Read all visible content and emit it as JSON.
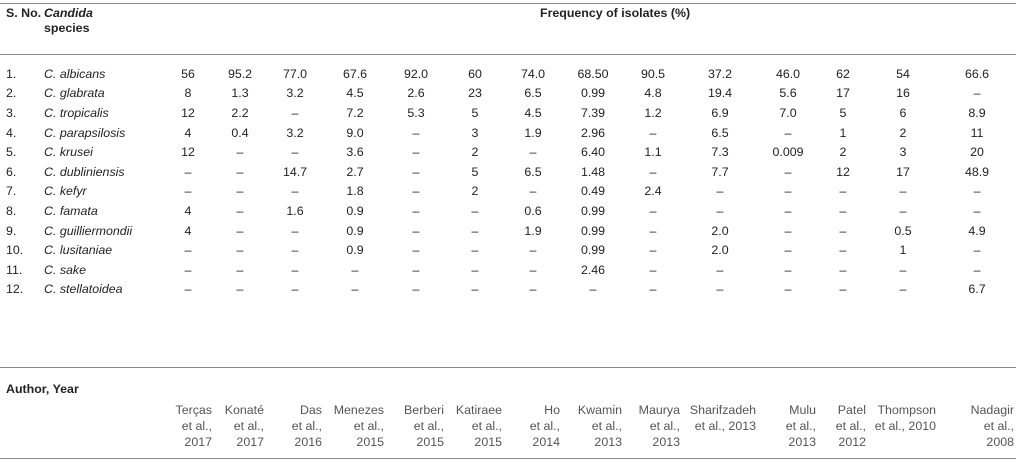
{
  "header": {
    "col1": "S. No.",
    "col2_line1": "Candida",
    "col2_line2": "species",
    "freq": "Frequency of isolates (%)"
  },
  "rows": [
    {
      "no": "1.",
      "species": "C. albicans",
      "values": [
        "56",
        "95.2",
        "77.0",
        "67.6",
        "92.0",
        "60",
        "74.0",
        "68.50",
        "90.5",
        "37.2",
        "46.0",
        "62",
        "54",
        "66.6"
      ]
    },
    {
      "no": "2.",
      "species": "C. glabrata",
      "values": [
        "8",
        "1.3",
        "3.2",
        "4.5",
        "2.6",
        "23",
        "6.5",
        "0.99",
        "4.8",
        "19.4",
        "5.6",
        "17",
        "16",
        "–"
      ]
    },
    {
      "no": "3.",
      "species": "C. tropicalis",
      "values": [
        "12",
        "2.2",
        "–",
        "7.2",
        "5.3",
        "5",
        "4.5",
        "7.39",
        "1.2",
        "6.9",
        "7.0",
        "5",
        "6",
        "8.9"
      ]
    },
    {
      "no": "4.",
      "species": "C. parapsilosis",
      "values": [
        "4",
        "0.4",
        "3.2",
        "9.0",
        "–",
        "3",
        "1.9",
        "2.96",
        "–",
        "6.5",
        "–",
        "1",
        "2",
        "11"
      ]
    },
    {
      "no": "5.",
      "species": "C. krusei",
      "values": [
        "12",
        "–",
        "–",
        "3.6",
        "–",
        "2",
        "–",
        "6.40",
        "1.1",
        "7.3",
        "0.009",
        "2",
        "3",
        "20"
      ]
    },
    {
      "no": "6.",
      "species": "C. dubliniensis",
      "values": [
        "–",
        "–",
        "14.7",
        "2.7",
        "–",
        "5",
        "6.5",
        "1.48",
        "–",
        "7.7",
        "–",
        "12",
        "17",
        "48.9"
      ]
    },
    {
      "no": "7.",
      "species": "C. kefyr",
      "values": [
        "–",
        "–",
        "–",
        "1.8",
        "–",
        "2",
        "–",
        "0.49",
        "2.4",
        "–",
        "–",
        "–",
        "–",
        "–"
      ]
    },
    {
      "no": "8.",
      "species": "C. famata",
      "values": [
        "4",
        "–",
        "1.6",
        "0.9",
        "–",
        "–",
        "0.6",
        "0.99",
        "–",
        "–",
        "–",
        "–",
        "–",
        "–"
      ]
    },
    {
      "no": "9.",
      "species": "C. guilliermondii",
      "values": [
        "4",
        "–",
        "–",
        "0.9",
        "–",
        "–",
        "1.9",
        "0.99",
        "–",
        "2.0",
        "–",
        "–",
        "0.5",
        "4.9"
      ]
    },
    {
      "no": "10.",
      "species": "C. lusitaniae",
      "values": [
        "–",
        "–",
        "–",
        "0.9",
        "–",
        "–",
        "–",
        "0.99",
        "–",
        "2.0",
        "–",
        "–",
        "1",
        "–"
      ]
    },
    {
      "no": "11.",
      "species": "C. sake",
      "values": [
        "–",
        "–",
        "–",
        "–",
        "–",
        "–",
        "–",
        "2.46",
        "–",
        "–",
        "–",
        "–",
        "–",
        "–"
      ]
    },
    {
      "no": "12.",
      "species": "C. stellatoidea",
      "values": [
        "–",
        "–",
        "–",
        "–",
        "–",
        "–",
        "–",
        "–",
        "–",
        "–",
        "–",
        "–",
        "–",
        "6.7"
      ]
    }
  ],
  "author_label": "Author, Year",
  "authors": [
    [
      "Terças",
      "et al.,",
      "2017"
    ],
    [
      "Konaté",
      "et al.,",
      "2017"
    ],
    [
      "Das",
      "et al.,",
      "2016"
    ],
    [
      "Menezes",
      "et al.,",
      "2015"
    ],
    [
      "Berberi",
      "et al.,",
      "2015"
    ],
    [
      "Katiraee",
      "et al.,",
      "2015"
    ],
    [
      "Ho",
      "et al.,",
      "2014"
    ],
    [
      "Kwamin",
      "et al.,",
      "2013"
    ],
    [
      "Maurya",
      "et al.,",
      "2013"
    ],
    [
      "Sharifzadeh",
      "et al., 2013"
    ],
    [
      "Mulu",
      "et al.,",
      "2013"
    ],
    [
      "Patel",
      "et al.,",
      "2012"
    ],
    [
      "Thompson",
      "et al., 2010"
    ],
    [
      "Nadagir",
      "et al.,",
      "2008"
    ]
  ]
}
